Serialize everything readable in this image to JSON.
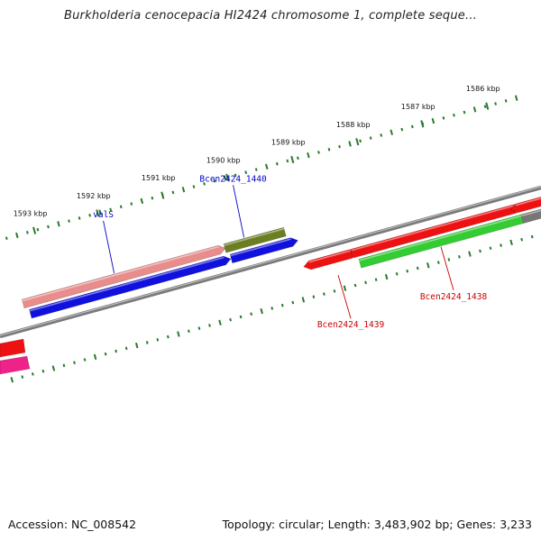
{
  "title": "Burkholderia cenocepacia HI2424 chromosome 1, complete seque...",
  "footer": {
    "accession": "Accession: NC_008542",
    "summary": "Topology: circular; Length: 3,483,902 bp; Genes: 3,233"
  },
  "ticks": [
    {
      "label": "1593 kbp",
      "t": 0.109
    },
    {
      "label": "1592 kbp",
      "t": 0.226
    },
    {
      "label": "1591 kbp",
      "t": 0.346
    },
    {
      "label": "1590 kbp",
      "t": 0.466
    },
    {
      "label": "1589 kbp",
      "t": 0.586
    },
    {
      "label": "1588 kbp",
      "t": 0.706
    },
    {
      "label": "1587 kbp",
      "t": 0.826
    },
    {
      "label": "1586 kbp",
      "t": 0.946
    }
  ],
  "genes": [
    {
      "id": "strand-pos-a",
      "color": "#e88c8c",
      "t0": 0.055,
      "t1": 0.418,
      "lane": "outer2",
      "arrow": "right"
    },
    {
      "id": "strand-pos-b",
      "color": "#6b7f22",
      "t0": 0.428,
      "t1": 0.539,
      "lane": "outer2",
      "arrow": "none"
    },
    {
      "id": "strand-pos-c",
      "color": "#ee1111",
      "t0": 0.645,
      "t1": 0.946,
      "lane": "inner1",
      "arrow": "left"
    },
    {
      "id": "strand-pos-d",
      "color": "#ee1111",
      "t0": 0.948,
      "t1": 1.0,
      "lane": "inner1",
      "arrow": "left"
    },
    {
      "id": "strand-neg-a",
      "color": "#1111dd",
      "t0": 0.063,
      "t1": 0.422,
      "lane": "outer1",
      "arrow": "right"
    },
    {
      "id": "strand-neg-b",
      "color": "#1111dd",
      "t0": 0.434,
      "t1": 0.546,
      "lane": "outer1",
      "arrow": "right"
    },
    {
      "id": "strand-neg-c",
      "color": "#ee1111",
      "t0": 0.566,
      "t1": 0.643,
      "lane": "inner1",
      "arrow": "left"
    },
    {
      "id": "strand-neg-d",
      "color": "#33cc33",
      "t0": 0.653,
      "t1": 0.953,
      "lane": "inner2",
      "arrow": "none"
    },
    {
      "id": "strand-neg-e",
      "color": "#777777",
      "t0": 0.953,
      "t1": 1.0,
      "lane": "inner2",
      "arrow": "none"
    }
  ],
  "edge_genes": [
    {
      "id": "edge-red",
      "color": "#ee1111"
    },
    {
      "id": "edge-pink",
      "color": "#ee2288"
    }
  ],
  "labels": [
    {
      "text": "valS",
      "color": "#0000cc",
      "anchor_t": 0.226,
      "pos": "above"
    },
    {
      "text": "Bcen2424_1440",
      "color": "#0000cc",
      "anchor_t": 0.466,
      "pos": "above"
    },
    {
      "text": "Bcen2424_1439",
      "color": "#cc0000",
      "anchor_t": 0.61,
      "pos": "below"
    },
    {
      "text": "Bcen2424_1438",
      "color": "#cc0000",
      "anchor_t": 0.8,
      "pos": "below"
    }
  ]
}
